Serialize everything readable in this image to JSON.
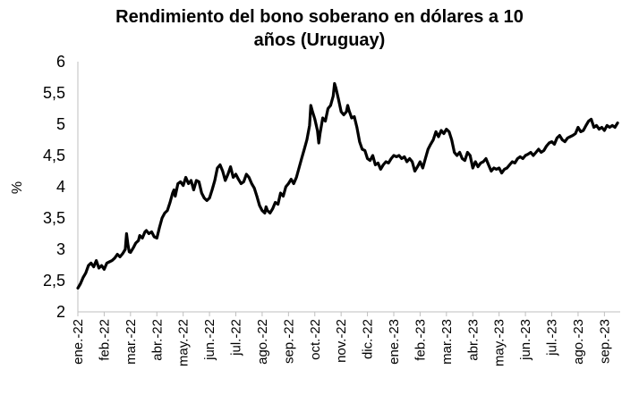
{
  "chart_data": {
    "type": "line",
    "title_lines": [
      "Rendimiento del bono soberano en dólares a 10",
      "años (Uruguay)"
    ],
    "xlabel": "",
    "ylabel": "%",
    "ylim": [
      2,
      6
    ],
    "yticks": [
      2,
      2.5,
      3,
      3.5,
      4,
      4.5,
      5,
      5.5,
      6
    ],
    "ytick_labels": [
      "2",
      "2,5",
      "3",
      "3,5",
      "4",
      "4,5",
      "5",
      "5,5",
      "6"
    ],
    "xlim": [
      0,
      20.6
    ],
    "xticks": [
      0,
      1,
      2,
      3,
      4,
      5,
      6,
      7,
      8,
      9,
      10,
      11,
      12,
      13,
      14,
      15,
      16,
      17,
      18,
      19,
      20
    ],
    "xtick_labels": [
      "ene.-22",
      "feb.-22",
      "mar.-22",
      "abr.-22",
      "may.-22",
      "jun.-22",
      "jul.-22",
      "ago.-22",
      "sep.-22",
      "oct.-22",
      "nov.-22",
      "dic.-22",
      "ene.-23",
      "feb.-23",
      "mar.-23",
      "abr.-23",
      "may.-23",
      "jun.-23",
      "jul.-23",
      "ago.-23",
      "sep.-23"
    ],
    "grid": false,
    "series": [
      {
        "color": "#000000",
        "points": [
          [
            0.0,
            2.38
          ],
          [
            0.1,
            2.45
          ],
          [
            0.2,
            2.55
          ],
          [
            0.3,
            2.62
          ],
          [
            0.4,
            2.74
          ],
          [
            0.5,
            2.78
          ],
          [
            0.6,
            2.72
          ],
          [
            0.7,
            2.82
          ],
          [
            0.8,
            2.7
          ],
          [
            0.9,
            2.74
          ],
          [
            1.0,
            2.68
          ],
          [
            1.1,
            2.78
          ],
          [
            1.2,
            2.8
          ],
          [
            1.3,
            2.82
          ],
          [
            1.4,
            2.86
          ],
          [
            1.5,
            2.92
          ],
          [
            1.6,
            2.88
          ],
          [
            1.7,
            2.93
          ],
          [
            1.8,
            3.0
          ],
          [
            1.85,
            3.25
          ],
          [
            1.9,
            3.08
          ],
          [
            1.95,
            2.96
          ],
          [
            2.0,
            2.95
          ],
          [
            2.1,
            3.02
          ],
          [
            2.2,
            3.1
          ],
          [
            2.3,
            3.14
          ],
          [
            2.35,
            3.22
          ],
          [
            2.45,
            3.18
          ],
          [
            2.55,
            3.28
          ],
          [
            2.6,
            3.3
          ],
          [
            2.7,
            3.25
          ],
          [
            2.8,
            3.28
          ],
          [
            2.9,
            3.2
          ],
          [
            3.0,
            3.18
          ],
          [
            3.1,
            3.35
          ],
          [
            3.2,
            3.5
          ],
          [
            3.3,
            3.58
          ],
          [
            3.4,
            3.62
          ],
          [
            3.5,
            3.75
          ],
          [
            3.6,
            3.9
          ],
          [
            3.65,
            3.95
          ],
          [
            3.7,
            3.85
          ],
          [
            3.8,
            4.05
          ],
          [
            3.9,
            4.08
          ],
          [
            4.0,
            4.02
          ],
          [
            4.1,
            4.15
          ],
          [
            4.2,
            4.05
          ],
          [
            4.3,
            4.1
          ],
          [
            4.4,
            3.95
          ],
          [
            4.5,
            4.1
          ],
          [
            4.6,
            4.08
          ],
          [
            4.7,
            3.9
          ],
          [
            4.8,
            3.82
          ],
          [
            4.9,
            3.78
          ],
          [
            5.0,
            3.82
          ],
          [
            5.1,
            3.95
          ],
          [
            5.2,
            4.1
          ],
          [
            5.3,
            4.3
          ],
          [
            5.4,
            4.35
          ],
          [
            5.5,
            4.25
          ],
          [
            5.6,
            4.1
          ],
          [
            5.7,
            4.2
          ],
          [
            5.8,
            4.32
          ],
          [
            5.9,
            4.15
          ],
          [
            6.0,
            4.2
          ],
          [
            6.1,
            4.12
          ],
          [
            6.2,
            4.05
          ],
          [
            6.3,
            4.08
          ],
          [
            6.4,
            4.2
          ],
          [
            6.5,
            4.15
          ],
          [
            6.6,
            4.05
          ],
          [
            6.7,
            3.98
          ],
          [
            6.8,
            3.85
          ],
          [
            6.9,
            3.7
          ],
          [
            7.0,
            3.62
          ],
          [
            7.1,
            3.58
          ],
          [
            7.15,
            3.68
          ],
          [
            7.2,
            3.62
          ],
          [
            7.3,
            3.58
          ],
          [
            7.4,
            3.65
          ],
          [
            7.5,
            3.75
          ],
          [
            7.6,
            3.72
          ],
          [
            7.7,
            3.9
          ],
          [
            7.8,
            3.85
          ],
          [
            7.9,
            4.0
          ],
          [
            8.0,
            4.05
          ],
          [
            8.1,
            4.12
          ],
          [
            8.2,
            4.05
          ],
          [
            8.3,
            4.15
          ],
          [
            8.4,
            4.3
          ],
          [
            8.5,
            4.45
          ],
          [
            8.6,
            4.6
          ],
          [
            8.7,
            4.75
          ],
          [
            8.8,
            4.98
          ],
          [
            8.85,
            5.3
          ],
          [
            8.9,
            5.22
          ],
          [
            9.0,
            5.08
          ],
          [
            9.1,
            4.9
          ],
          [
            9.15,
            4.7
          ],
          [
            9.2,
            4.85
          ],
          [
            9.3,
            5.1
          ],
          [
            9.4,
            5.05
          ],
          [
            9.5,
            5.25
          ],
          [
            9.6,
            5.3
          ],
          [
            9.7,
            5.45
          ],
          [
            9.75,
            5.65
          ],
          [
            9.8,
            5.58
          ],
          [
            9.9,
            5.4
          ],
          [
            10.0,
            5.2
          ],
          [
            10.1,
            5.15
          ],
          [
            10.2,
            5.2
          ],
          [
            10.25,
            5.3
          ],
          [
            10.3,
            5.22
          ],
          [
            10.4,
            5.1
          ],
          [
            10.5,
            5.12
          ],
          [
            10.6,
            4.95
          ],
          [
            10.7,
            4.72
          ],
          [
            10.8,
            4.6
          ],
          [
            10.9,
            4.58
          ],
          [
            11.0,
            4.45
          ],
          [
            11.1,
            4.42
          ],
          [
            11.2,
            4.5
          ],
          [
            11.3,
            4.35
          ],
          [
            11.4,
            4.38
          ],
          [
            11.5,
            4.28
          ],
          [
            11.6,
            4.35
          ],
          [
            11.7,
            4.4
          ],
          [
            11.8,
            4.38
          ],
          [
            11.9,
            4.45
          ],
          [
            12.0,
            4.5
          ],
          [
            12.1,
            4.48
          ],
          [
            12.2,
            4.5
          ],
          [
            12.3,
            4.45
          ],
          [
            12.4,
            4.48
          ],
          [
            12.5,
            4.4
          ],
          [
            12.6,
            4.45
          ],
          [
            12.7,
            4.4
          ],
          [
            12.8,
            4.25
          ],
          [
            12.9,
            4.32
          ],
          [
            13.0,
            4.4
          ],
          [
            13.1,
            4.3
          ],
          [
            13.2,
            4.45
          ],
          [
            13.3,
            4.6
          ],
          [
            13.4,
            4.68
          ],
          [
            13.5,
            4.75
          ],
          [
            13.6,
            4.88
          ],
          [
            13.7,
            4.8
          ],
          [
            13.8,
            4.9
          ],
          [
            13.9,
            4.85
          ],
          [
            14.0,
            4.92
          ],
          [
            14.1,
            4.88
          ],
          [
            14.2,
            4.75
          ],
          [
            14.3,
            4.55
          ],
          [
            14.4,
            4.5
          ],
          [
            14.5,
            4.55
          ],
          [
            14.6,
            4.45
          ],
          [
            14.7,
            4.42
          ],
          [
            14.8,
            4.55
          ],
          [
            14.9,
            4.5
          ],
          [
            15.0,
            4.3
          ],
          [
            15.1,
            4.4
          ],
          [
            15.2,
            4.32
          ],
          [
            15.3,
            4.38
          ],
          [
            15.4,
            4.4
          ],
          [
            15.5,
            4.45
          ],
          [
            15.6,
            4.35
          ],
          [
            15.7,
            4.25
          ],
          [
            15.8,
            4.3
          ],
          [
            15.9,
            4.28
          ],
          [
            16.0,
            4.3
          ],
          [
            16.1,
            4.22
          ],
          [
            16.2,
            4.28
          ],
          [
            16.3,
            4.3
          ],
          [
            16.4,
            4.35
          ],
          [
            16.5,
            4.4
          ],
          [
            16.6,
            4.38
          ],
          [
            16.7,
            4.45
          ],
          [
            16.8,
            4.48
          ],
          [
            16.9,
            4.45
          ],
          [
            17.0,
            4.5
          ],
          [
            17.1,
            4.52
          ],
          [
            17.2,
            4.55
          ],
          [
            17.3,
            4.5
          ],
          [
            17.4,
            4.55
          ],
          [
            17.5,
            4.6
          ],
          [
            17.6,
            4.55
          ],
          [
            17.7,
            4.58
          ],
          [
            17.8,
            4.65
          ],
          [
            17.9,
            4.7
          ],
          [
            18.0,
            4.72
          ],
          [
            18.1,
            4.68
          ],
          [
            18.2,
            4.78
          ],
          [
            18.3,
            4.82
          ],
          [
            18.4,
            4.75
          ],
          [
            18.5,
            4.72
          ],
          [
            18.6,
            4.78
          ],
          [
            18.7,
            4.8
          ],
          [
            18.8,
            4.82
          ],
          [
            18.9,
            4.85
          ],
          [
            19.0,
            4.95
          ],
          [
            19.1,
            4.88
          ],
          [
            19.2,
            4.9
          ],
          [
            19.3,
            4.98
          ],
          [
            19.4,
            5.05
          ],
          [
            19.5,
            5.08
          ],
          [
            19.6,
            4.95
          ],
          [
            19.7,
            4.98
          ],
          [
            19.8,
            4.92
          ],
          [
            19.9,
            4.95
          ],
          [
            20.0,
            4.9
          ],
          [
            20.1,
            4.98
          ],
          [
            20.2,
            4.95
          ],
          [
            20.3,
            4.98
          ],
          [
            20.4,
            4.95
          ],
          [
            20.5,
            5.02
          ]
        ]
      }
    ]
  }
}
